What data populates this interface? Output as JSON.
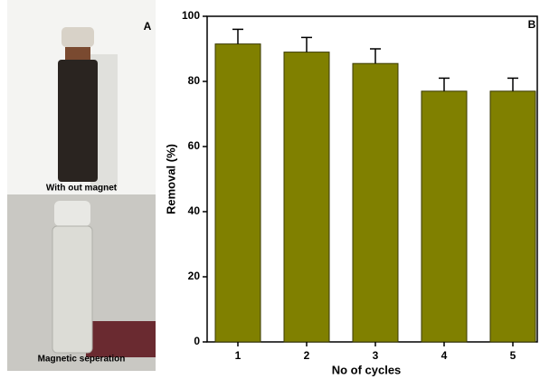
{
  "panel_a": {
    "label": "A",
    "captions": [
      "With out magnet",
      "Magnetic seperation"
    ]
  },
  "chart_data": {
    "type": "bar",
    "panel_label": "B",
    "x_label": "No of cycles",
    "y_label": "Removal (%)",
    "categories": [
      "1",
      "2",
      "3",
      "4",
      "5"
    ],
    "values": [
      91.5,
      89,
      85.5,
      77,
      77
    ],
    "errors": [
      4.5,
      4.5,
      4.5,
      4,
      4
    ],
    "color": "#808000",
    "ylim": [
      0,
      100
    ],
    "yticks": [
      0,
      20,
      40,
      60,
      80,
      100
    ]
  }
}
